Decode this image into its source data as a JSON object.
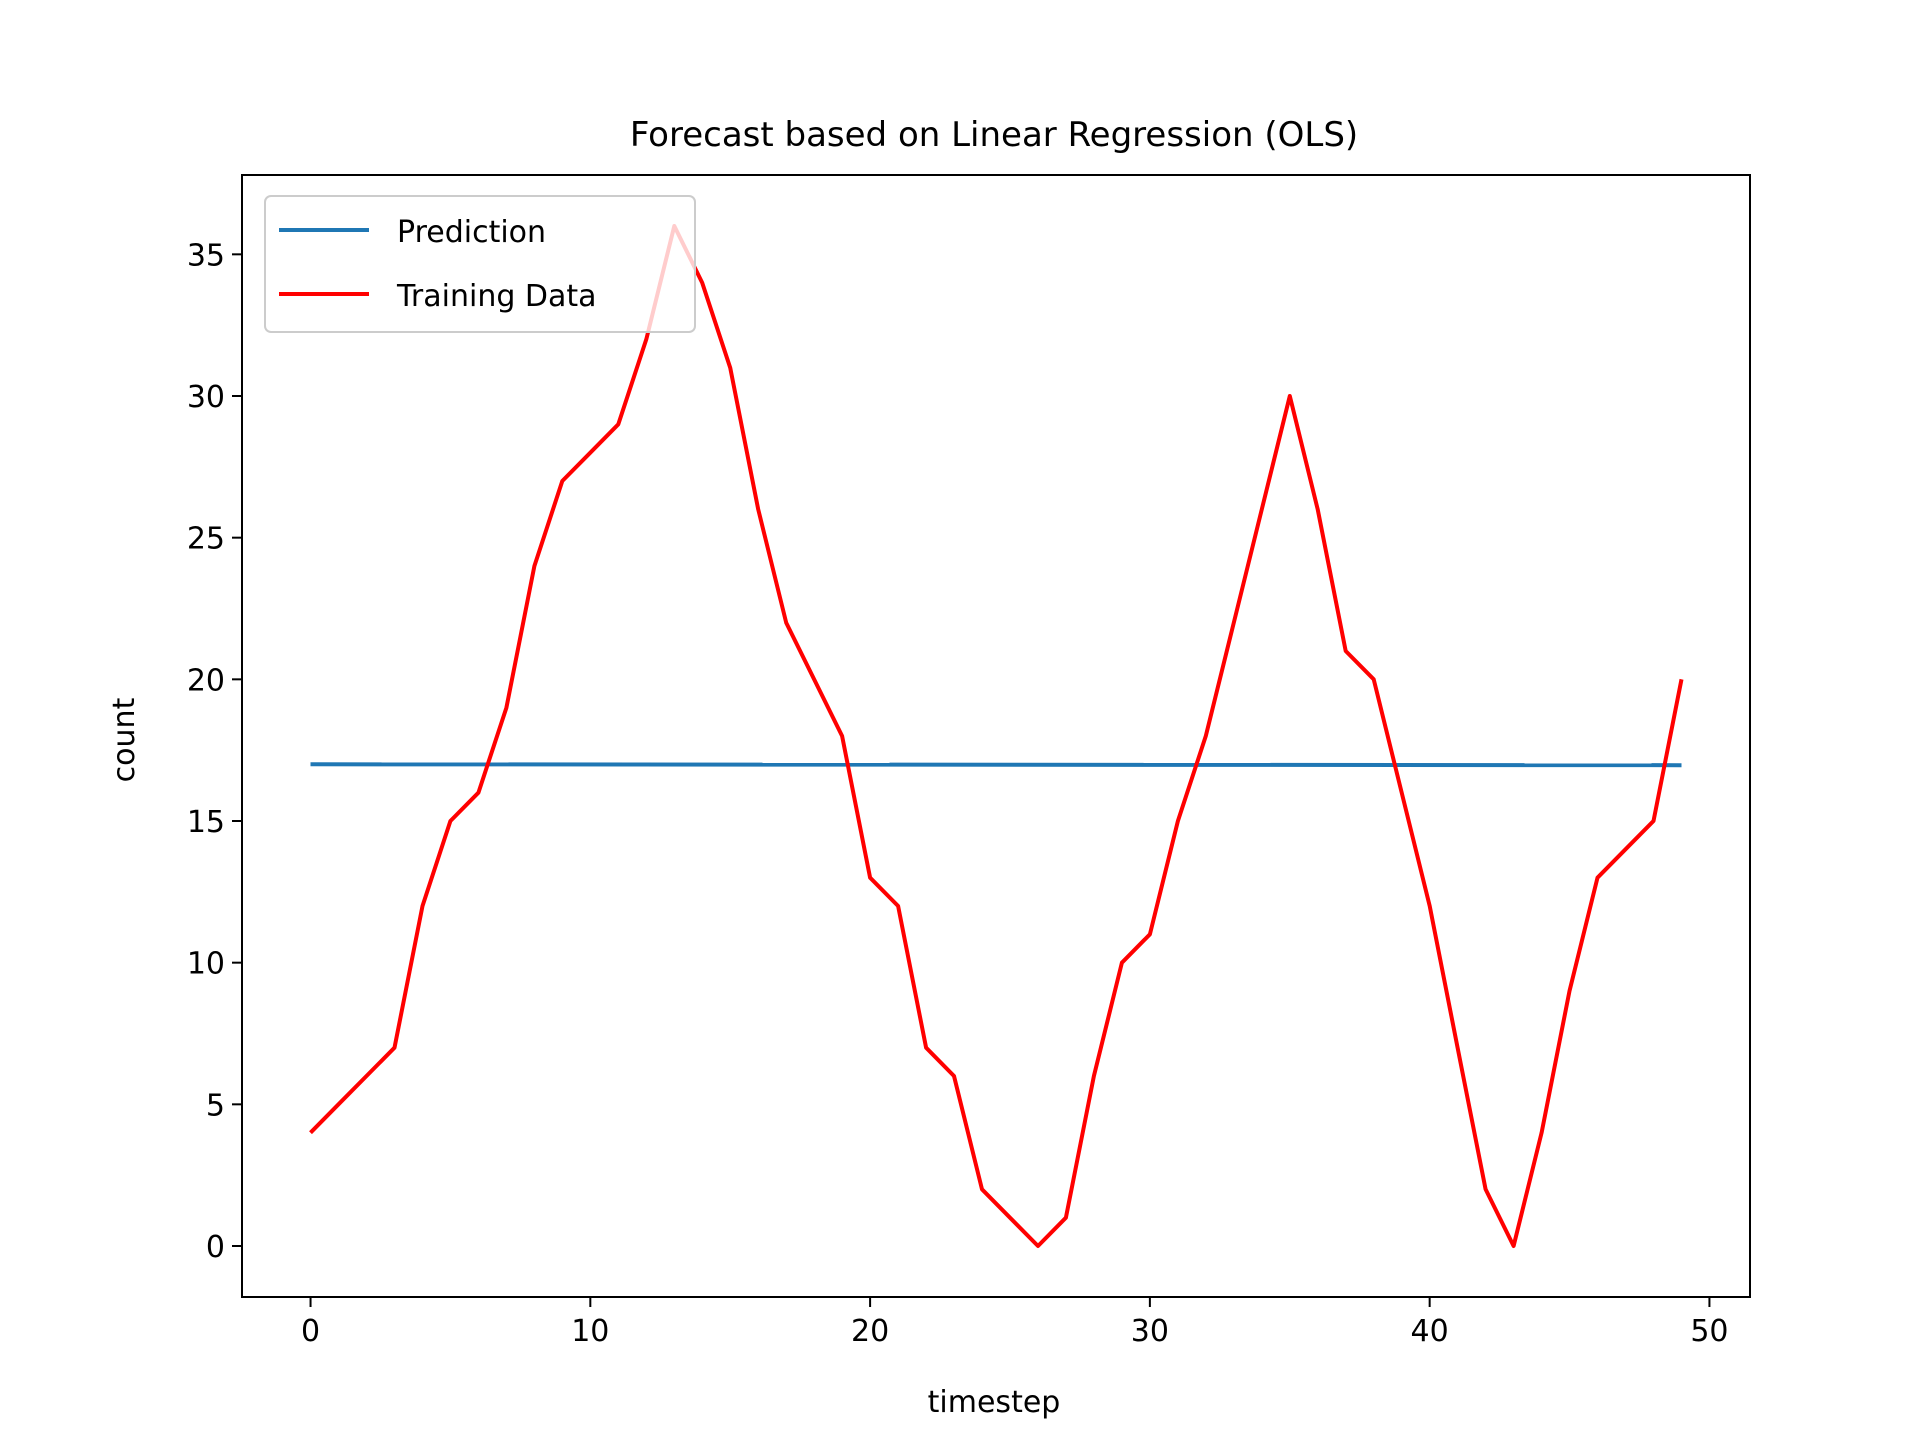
{
  "chart_data": {
    "type": "line",
    "title": "Forecast based on Linear Regression (OLS)",
    "xlabel": "timestep",
    "ylabel": "count",
    "xlim": [
      -2.45,
      51.45
    ],
    "ylim": [
      -1.8,
      37.8
    ],
    "xticks": [
      0,
      10,
      20,
      30,
      40,
      50
    ],
    "yticks": [
      0,
      5,
      10,
      15,
      20,
      25,
      30,
      35
    ],
    "grid": false,
    "legend": "top-left",
    "series": [
      {
        "name": "Prediction",
        "color": "#1f77b4",
        "x": [
          0,
          49
        ],
        "y": [
          17.0,
          16.97
        ]
      },
      {
        "name": "Training Data",
        "color": "#ff0000",
        "x": [
          0,
          1,
          2,
          3,
          4,
          5,
          6,
          7,
          8,
          9,
          10,
          11,
          12,
          13,
          14,
          15,
          16,
          17,
          18,
          19,
          20,
          21,
          22,
          23,
          24,
          25,
          26,
          27,
          28,
          29,
          30,
          31,
          32,
          33,
          34,
          35,
          36,
          37,
          38,
          39,
          40,
          41,
          42,
          43,
          44,
          45,
          46,
          47,
          48,
          49
        ],
        "y": [
          4,
          5,
          6,
          7,
          12,
          15,
          16,
          19,
          24,
          27,
          28,
          29,
          32,
          36,
          34,
          31,
          26,
          22,
          20,
          18,
          13,
          12,
          7,
          6,
          2,
          1,
          0,
          1,
          6,
          10,
          11,
          15,
          18,
          22,
          26,
          30,
          26,
          21,
          20,
          16,
          12,
          7,
          2,
          0,
          4,
          9,
          13,
          14,
          15,
          20
        ]
      }
    ]
  }
}
